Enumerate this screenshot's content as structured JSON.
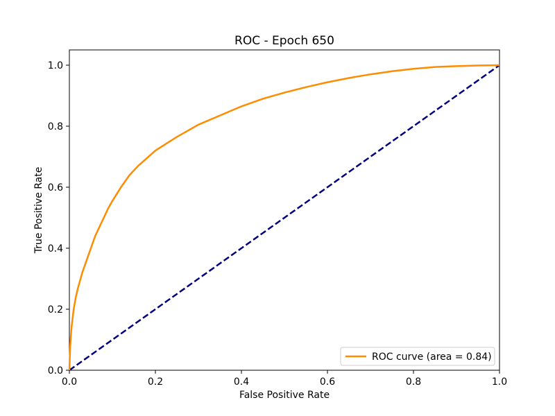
{
  "chart_data": {
    "type": "line",
    "title": "ROC - Epoch 650",
    "xlabel": "False Positive Rate",
    "ylabel": "True Positive Rate",
    "xlim": [
      0.0,
      1.0
    ],
    "ylim": [
      0.0,
      1.05
    ],
    "xticks": [
      0.0,
      0.2,
      0.4,
      0.6,
      0.8,
      1.0
    ],
    "xtick_labels": [
      "0.0",
      "0.2",
      "0.4",
      "0.6",
      "0.8",
      "1.0"
    ],
    "yticks": [
      0.0,
      0.2,
      0.4,
      0.6,
      0.8,
      1.0
    ],
    "ytick_labels": [
      "0.0",
      "0.2",
      "0.4",
      "0.6",
      "0.8",
      "1.0"
    ],
    "grid": false,
    "legend_position": "lower-right",
    "series": [
      {
        "name": "ROC curve (area = 0.84)",
        "color": "#ff8c00",
        "style": "solid",
        "x": [
          0.0,
          0.002,
          0.005,
          0.01,
          0.015,
          0.02,
          0.03,
          0.04,
          0.05,
          0.06,
          0.07,
          0.08,
          0.09,
          0.1,
          0.12,
          0.14,
          0.16,
          0.18,
          0.2,
          0.25,
          0.3,
          0.35,
          0.4,
          0.45,
          0.5,
          0.55,
          0.6,
          0.65,
          0.7,
          0.75,
          0.8,
          0.85,
          0.9,
          0.95,
          1.0
        ],
        "y": [
          0.0,
          0.08,
          0.14,
          0.2,
          0.24,
          0.27,
          0.32,
          0.36,
          0.4,
          0.44,
          0.47,
          0.5,
          0.53,
          0.555,
          0.6,
          0.64,
          0.67,
          0.695,
          0.72,
          0.765,
          0.805,
          0.835,
          0.865,
          0.89,
          0.91,
          0.928,
          0.944,
          0.958,
          0.97,
          0.98,
          0.988,
          0.994,
          0.997,
          0.999,
          1.0
        ]
      },
      {
        "color": "#000080",
        "style": "dashed",
        "x": [
          0.0,
          1.0
        ],
        "y": [
          0.0,
          1.0
        ]
      }
    ]
  }
}
